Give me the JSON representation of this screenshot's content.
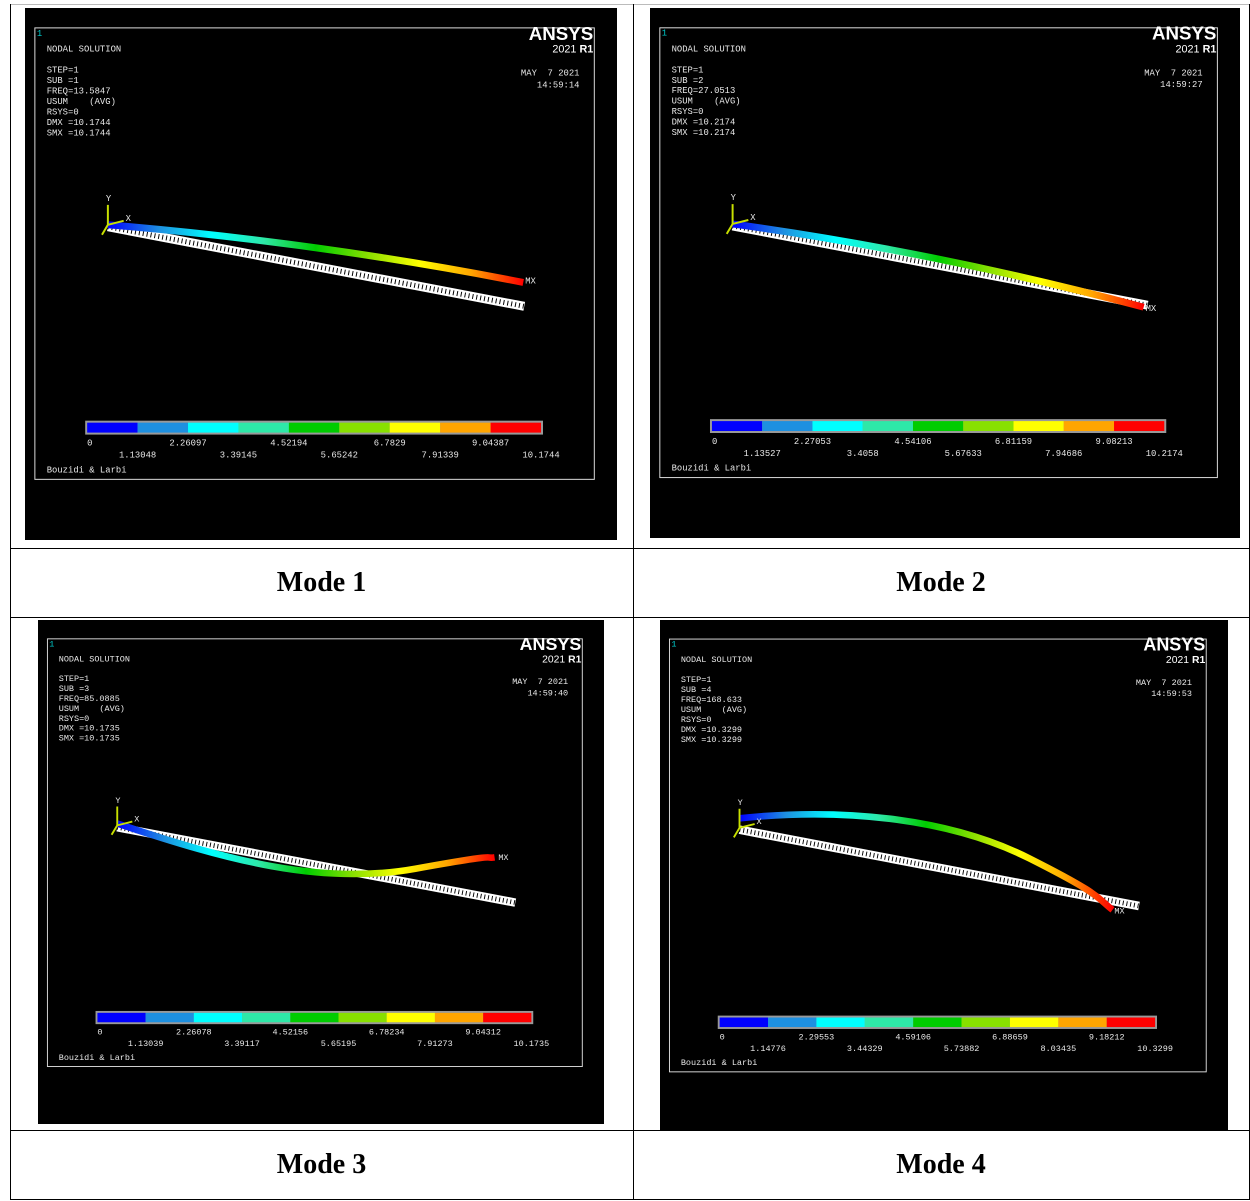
{
  "panels": [
    {
      "caption": "Mode 1",
      "plot_number": "1",
      "title": "NODAL SOLUTION",
      "info": [
        "STEP=1",
        "SUB =1",
        "FREQ=13.5847",
        "USUM    (AVG)",
        "RSYS=0",
        "DMX =10.1744",
        "SMX =10.1744"
      ],
      "logo": "ANSYS",
      "version": "2021",
      "release": "R1",
      "date": "MAY  7 2021",
      "time": "14:59:14",
      "legend": [
        "0",
        "1.13048",
        "2.26097",
        "3.39145",
        "4.52194",
        "5.65242",
        "6.7829",
        "7.91339",
        "9.04387",
        "10.1744"
      ],
      "credit": "Bouzidi & Larbi",
      "axis_y": "Y",
      "axis_x": "X",
      "max_label": "MX"
    },
    {
      "caption": "Mode 2",
      "plot_number": "1",
      "title": "NODAL SOLUTION",
      "info": [
        "STEP=1",
        "SUB =2",
        "FREQ=27.0513",
        "USUM    (AVG)",
        "RSYS=0",
        "DMX =10.2174",
        "SMX =10.2174"
      ],
      "logo": "ANSYS",
      "version": "2021",
      "release": "R1",
      "date": "MAY  7 2021",
      "time": "14:59:27",
      "legend": [
        "0",
        "1.13527",
        "2.27053",
        "3.4058",
        "4.54106",
        "5.67633",
        "6.81159",
        "7.94686",
        "9.08213",
        "10.2174"
      ],
      "credit": "Bouzidi & Larbi",
      "axis_y": "Y",
      "axis_x": "X",
      "max_label": "MX"
    },
    {
      "caption": "Mode 3",
      "plot_number": "1",
      "title": "NODAL SOLUTION",
      "info": [
        "STEP=1",
        "SUB =3",
        "FREQ=85.0885",
        "USUM    (AVG)",
        "RSYS=0",
        "DMX =10.1735",
        "SMX =10.1735"
      ],
      "logo": "ANSYS",
      "version": "2021",
      "release": "R1",
      "date": "MAY  7 2021",
      "time": "14:59:40",
      "legend": [
        "0",
        "1.13039",
        "2.26078",
        "3.39117",
        "4.52156",
        "5.65195",
        "6.78234",
        "7.91273",
        "9.04312",
        "10.1735"
      ],
      "credit": "Bouzidi & Larbi",
      "axis_y": "Y",
      "axis_x": "X",
      "max_label": "MX"
    },
    {
      "caption": "Mode 4",
      "plot_number": "1",
      "title": "NODAL SOLUTION",
      "info": [
        "STEP=1",
        "SUB =4",
        "FREQ=168.633",
        "USUM    (AVG)",
        "RSYS=0",
        "DMX =10.3299",
        "SMX =10.3299"
      ],
      "logo": "ANSYS",
      "version": "2021",
      "release": "R1",
      "date": "MAY  7 2021",
      "time": "14:59:53",
      "legend": [
        "0",
        "1.14776",
        "2.29553",
        "3.44329",
        "4.59106",
        "5.73882",
        "6.88659",
        "8.03435",
        "9.18212",
        "10.3299"
      ],
      "credit": "Bouzidi & Larbi",
      "axis_y": "Y",
      "axis_x": "X",
      "max_label": "MX"
    }
  ]
}
